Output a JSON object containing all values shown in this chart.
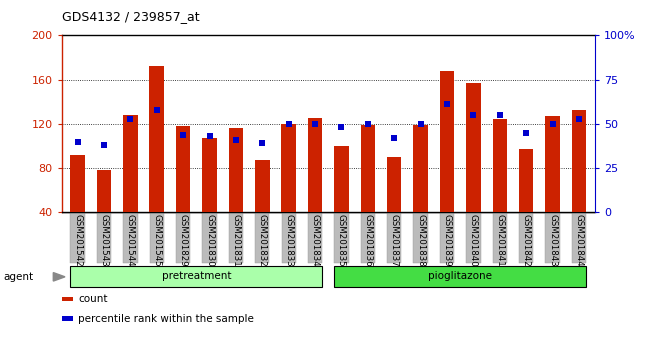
{
  "title": "GDS4132 / 239857_at",
  "samples": [
    "GSM201542",
    "GSM201543",
    "GSM201544",
    "GSM201545",
    "GSM201829",
    "GSM201830",
    "GSM201831",
    "GSM201832",
    "GSM201833",
    "GSM201834",
    "GSM201835",
    "GSM201836",
    "GSM201837",
    "GSM201838",
    "GSM201839",
    "GSM201840",
    "GSM201841",
    "GSM201842",
    "GSM201843",
    "GSM201844"
  ],
  "count_values": [
    92,
    78,
    128,
    172,
    118,
    107,
    116,
    87,
    120,
    125,
    100,
    119,
    90,
    119,
    168,
    157,
    124,
    97,
    127,
    133
  ],
  "percentile_values": [
    40,
    38,
    53,
    58,
    44,
    43,
    41,
    39,
    50,
    50,
    48,
    50,
    42,
    50,
    61,
    55,
    55,
    45,
    50,
    53
  ],
  "bar_color": "#cc2200",
  "percentile_color": "#0000cc",
  "pretreatment_samples": 10,
  "pioglitazone_samples": 10,
  "pretreatment_color": "#aaffaa",
  "pioglitazone_color": "#44dd44",
  "left_ylim": [
    40,
    200
  ],
  "left_yticks": [
    40,
    80,
    120,
    160,
    200
  ],
  "right_ylim": [
    0,
    100
  ],
  "right_yticks": [
    0,
    25,
    50,
    75,
    100
  ],
  "right_yticklabels": [
    "0",
    "25",
    "50",
    "75",
    "100%"
  ],
  "bar_width": 0.55,
  "tick_bg_color": "#bbbbbb",
  "agent_triangle_color": "#888888"
}
